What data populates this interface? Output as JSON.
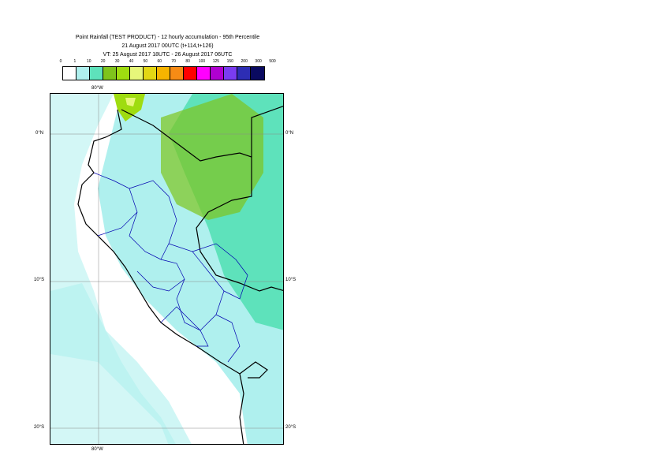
{
  "header": {
    "line1": "Point Rainfall (TEST PRODUCT) - 12 hourly accumulation - 95th Percentile",
    "line2": "21 August 2017 00UTC (t+114,t+126)",
    "line3": "VT: 25 August 2017 18UTC - 26 August 2017 06UTC"
  },
  "legend": {
    "ticks": [
      "0",
      "1",
      "10",
      "20",
      "30",
      "40",
      "50",
      "60",
      "70",
      "80",
      "100",
      "125",
      "150",
      "200",
      "300",
      "500"
    ],
    "colors": [
      "#ffffff",
      "#aff0ee",
      "#5ee2bb",
      "#7fc41c",
      "#9fdc10",
      "#e7f77a",
      "#e3d714",
      "#f6b400",
      "#f78b15",
      "#ff0000",
      "#ff00ff",
      "#b000d0",
      "#7a3cf0",
      "#2d2db4",
      "#0a0a60"
    ]
  },
  "map": {
    "lat_labels": [
      "0°N",
      "10°S",
      "20°S"
    ],
    "lon_labels": [
      "80°W",
      "80°W"
    ]
  }
}
